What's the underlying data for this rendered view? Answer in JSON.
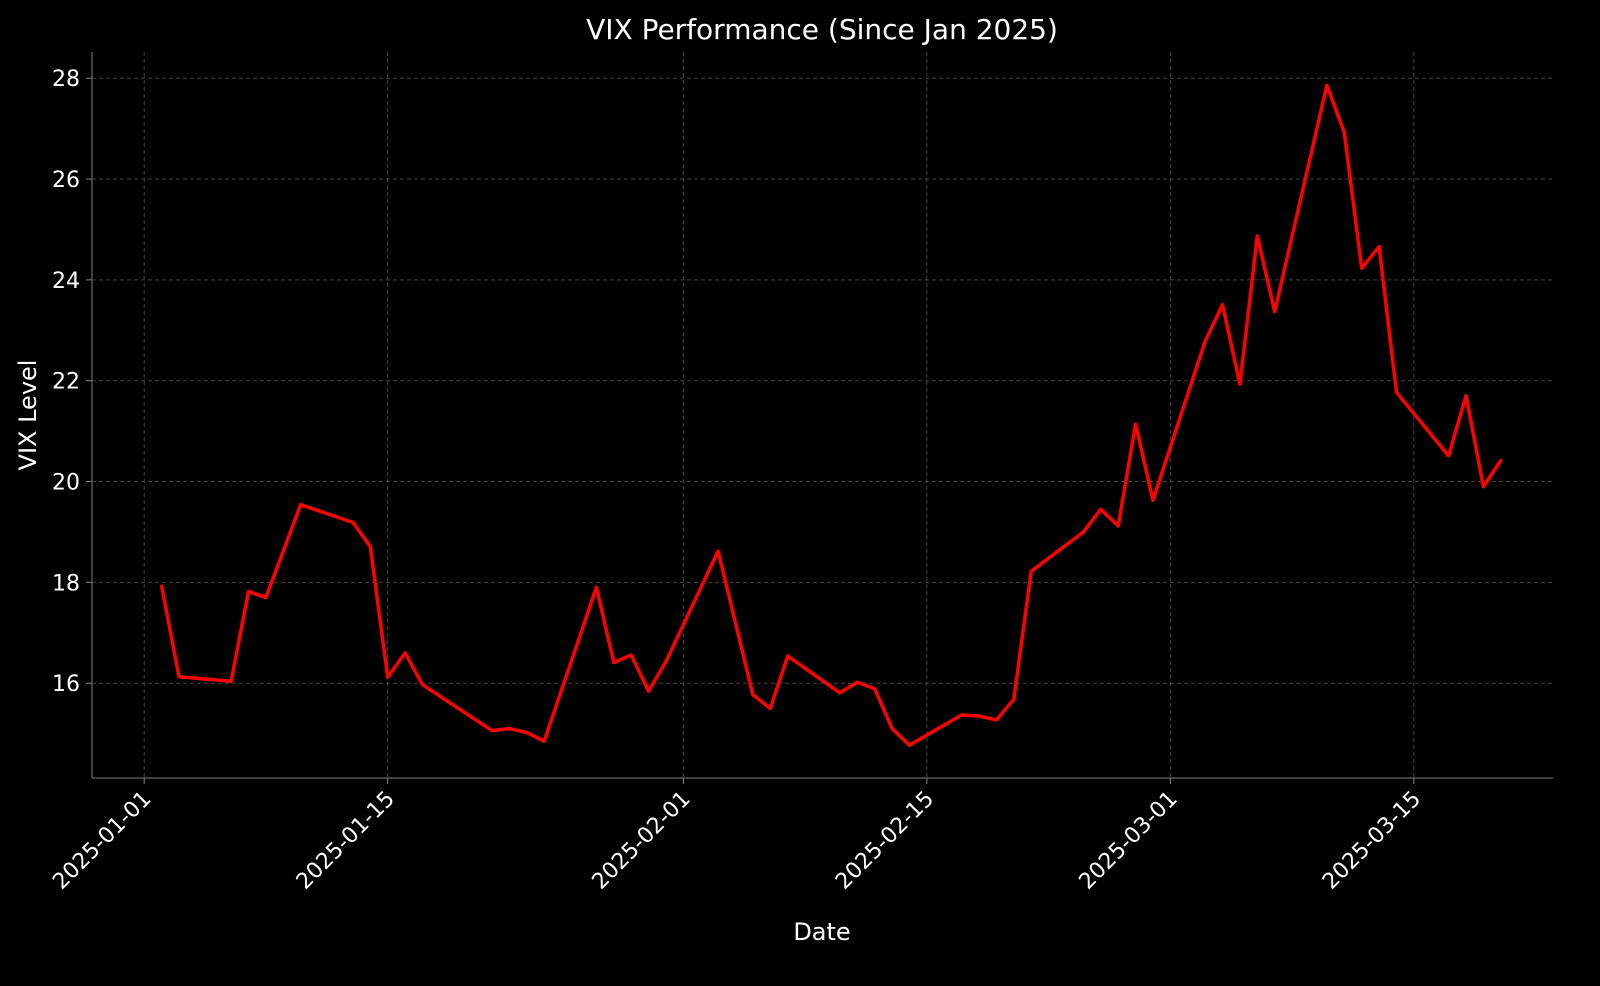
{
  "chart_data": {
    "type": "line",
    "title": "VIX Performance (Since Jan 2025)",
    "xlabel": "Date",
    "ylabel": "VIX Level",
    "ylim": [
      14.12,
      28.52
    ],
    "xlim": [
      "2024-12-29",
      "2025-03-23"
    ],
    "grid": true,
    "line_color": "#ff0000",
    "background": "#000000",
    "x_ticks": [
      "2025-01-01",
      "2025-01-15",
      "2025-02-01",
      "2025-02-15",
      "2025-03-01",
      "2025-03-15"
    ],
    "y_ticks": [
      16,
      18,
      20,
      22,
      24,
      26,
      28
    ],
    "series": [
      {
        "name": "VIX",
        "x": [
          "2025-01-02",
          "2025-01-03",
          "2025-01-06",
          "2025-01-07",
          "2025-01-08",
          "2025-01-10",
          "2025-01-13",
          "2025-01-14",
          "2025-01-15",
          "2025-01-16",
          "2025-01-17",
          "2025-01-21",
          "2025-01-22",
          "2025-01-23",
          "2025-01-24",
          "2025-01-27",
          "2025-01-28",
          "2025-01-29",
          "2025-01-30",
          "2025-01-31",
          "2025-02-03",
          "2025-02-05",
          "2025-02-06",
          "2025-02-07",
          "2025-02-10",
          "2025-02-11",
          "2025-02-12",
          "2025-02-13",
          "2025-02-14",
          "2025-02-17",
          "2025-02-18",
          "2025-02-19",
          "2025-02-20",
          "2025-02-21",
          "2025-02-24",
          "2025-02-25",
          "2025-02-26",
          "2025-02-27",
          "2025-02-28",
          "2025-03-03",
          "2025-03-04",
          "2025-03-05",
          "2025-03-06",
          "2025-03-07",
          "2025-03-10",
          "2025-03-11",
          "2025-03-12",
          "2025-03-13",
          "2025-03-14",
          "2025-03-17",
          "2025-03-18",
          "2025-03-19",
          "2025-03-20"
        ],
        "values": [
          17.93,
          16.13,
          16.04,
          17.82,
          17.7,
          19.54,
          19.19,
          18.71,
          16.12,
          16.6,
          15.97,
          15.06,
          15.1,
          15.02,
          14.85,
          17.9,
          16.41,
          16.56,
          15.84,
          16.43,
          18.62,
          15.77,
          15.5,
          16.54,
          15.81,
          16.02,
          15.89,
          15.1,
          14.77,
          15.37,
          15.35,
          15.27,
          15.68,
          18.22,
          19.0,
          19.45,
          19.12,
          21.14,
          19.63,
          22.78,
          23.51,
          21.93,
          24.87,
          23.37,
          27.86,
          26.92,
          24.23,
          24.66,
          21.77,
          20.51,
          21.7,
          19.9,
          20.42
        ]
      }
    ]
  }
}
